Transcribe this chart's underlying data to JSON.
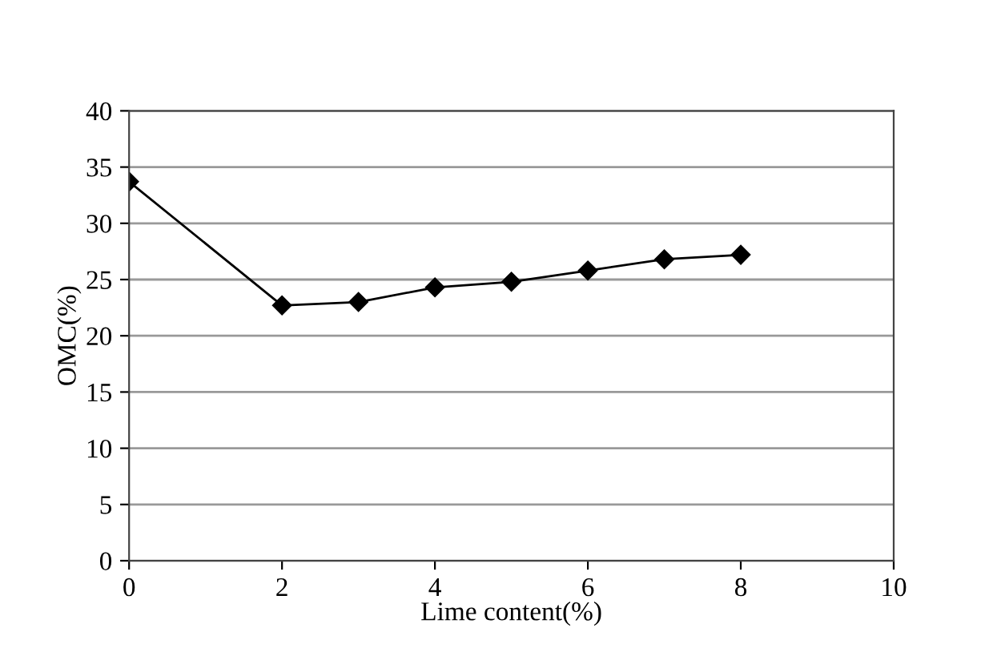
{
  "chart_data": {
    "type": "line",
    "xlabel": "Lime content(%)",
    "ylabel": "OMC(%)",
    "x": [
      0,
      2,
      3,
      4,
      5,
      6,
      7,
      8
    ],
    "series": [
      {
        "color": "#000000",
        "values": [
          33.7,
          22.7,
          23.0,
          24.3,
          24.8,
          25.8,
          26.8,
          27.2
        ]
      }
    ],
    "xlim": [
      0,
      10
    ],
    "xticks": [
      0,
      2,
      4,
      6,
      8,
      10
    ],
    "ylim": [
      0,
      40
    ],
    "yticks": [
      0,
      5,
      10,
      15,
      20,
      25,
      30,
      35,
      40
    ],
    "grid": "y",
    "marker": "diamond",
    "line_style": "solid"
  }
}
